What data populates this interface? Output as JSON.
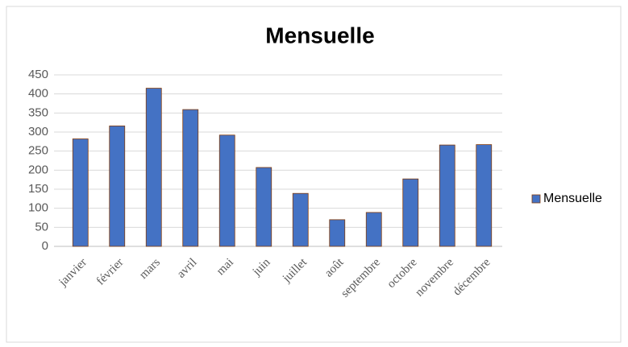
{
  "chart_data": {
    "type": "bar",
    "title": "Mensuelle",
    "categories": [
      "janvier",
      "février",
      "mars",
      "avril",
      "mai",
      "juin",
      "juillet",
      "août",
      "septembre",
      "octobre",
      "novembre",
      "décembre"
    ],
    "series": [
      {
        "name": "Mensuelle",
        "color": "#4472c4",
        "values": [
          282,
          316,
          415,
          359,
          292,
          207,
          139,
          70,
          89,
          177,
          266,
          267
        ]
      }
    ],
    "ylim": [
      0,
      450
    ],
    "yticks": [
      0,
      50,
      100,
      150,
      200,
      250,
      300,
      350,
      400,
      450
    ],
    "grid": true,
    "legend": "right"
  }
}
